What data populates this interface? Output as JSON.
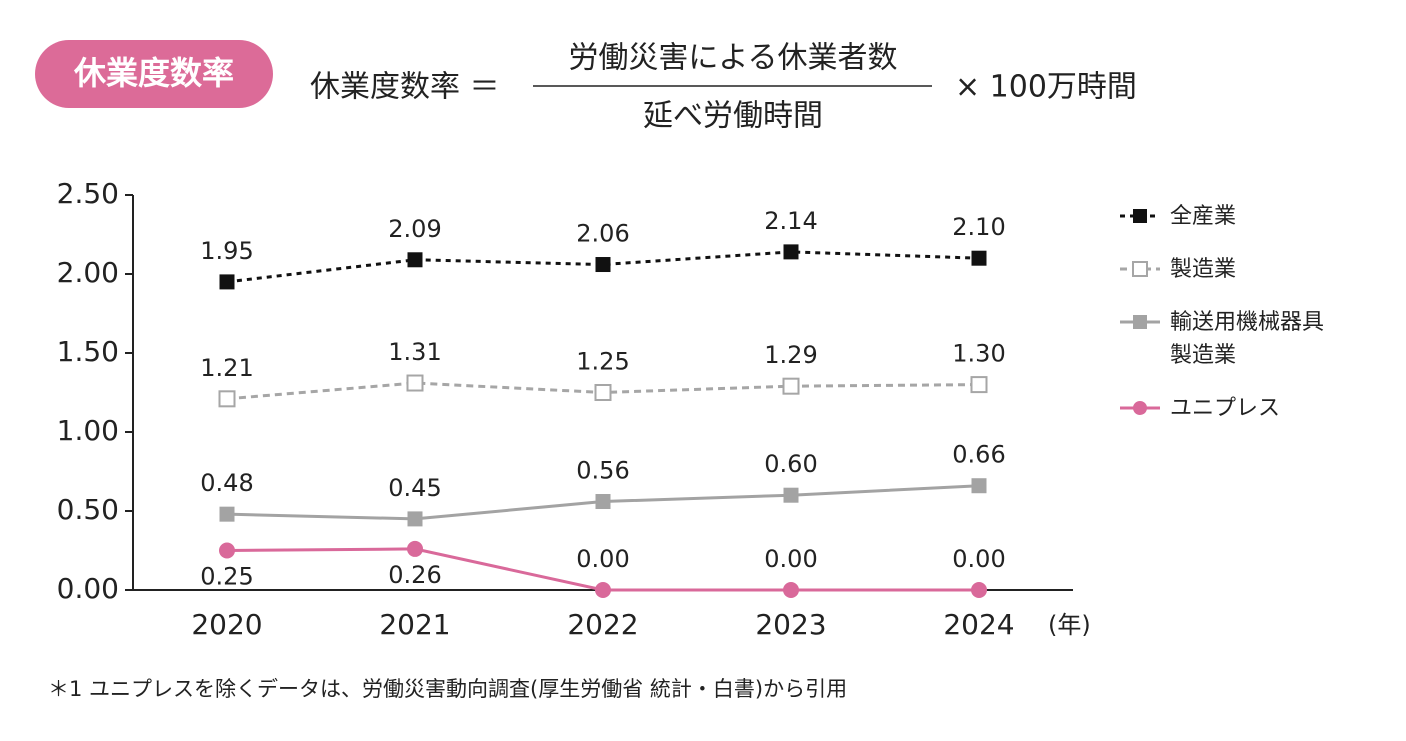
{
  "badge": "休業度数率",
  "formula": {
    "lhs": "休業度数率 ＝",
    "numerator": "労働災害による休業者数",
    "denominator": "延べ労働時間",
    "multiplier": "× 100万時間"
  },
  "chart_data": {
    "type": "line",
    "x_label": "(年)",
    "categories": [
      "2020",
      "2021",
      "2022",
      "2023",
      "2024"
    ],
    "ylim": [
      0,
      2.5
    ],
    "yticks": [
      {
        "value": 0,
        "label": "0.00"
      },
      {
        "value": 0.5,
        "label": "0.50"
      },
      {
        "value": 1,
        "label": "1.00"
      },
      {
        "value": 1.5,
        "label": "1.50"
      },
      {
        "value": 2,
        "label": "2.00"
      },
      {
        "value": 2.5,
        "label": "2.50"
      }
    ],
    "series": [
      {
        "name": "全産業",
        "color": "#111111",
        "line_style": "dotted",
        "marker": "square",
        "marker_filled": true,
        "values": [
          1.95,
          2.09,
          2.06,
          2.14,
          2.1
        ],
        "value_labels": [
          "1.95",
          "2.09",
          "2.06",
          "2.14",
          "2.10"
        ]
      },
      {
        "name": "製造業",
        "color": "#a6a6a6",
        "line_style": "dashed",
        "marker": "square",
        "marker_filled": false,
        "values": [
          1.21,
          1.31,
          1.25,
          1.29,
          1.3
        ],
        "value_labels": [
          "1.21",
          "1.31",
          "1.25",
          "1.29",
          "1.30"
        ]
      },
      {
        "name": "輸送用機械器具製造業",
        "color": "#a3a3a3",
        "line_style": "solid",
        "marker": "square",
        "marker_filled": true,
        "values": [
          0.48,
          0.45,
          0.56,
          0.6,
          0.66
        ],
        "value_labels": [
          "0.48",
          "0.45",
          "0.56",
          "0.60",
          "0.66"
        ]
      },
      {
        "name": "ユニプレス",
        "color": "#d9699a",
        "line_style": "solid",
        "marker": "circle",
        "marker_filled": true,
        "values": [
          0.25,
          0.26,
          0,
          0,
          0
        ],
        "value_labels": [
          "0.25",
          "0.26",
          "0.00",
          "0.00",
          "0.00"
        ]
      }
    ]
  },
  "footnote": "＊1 ユニプレスを除くデータは、労働災害動向調査(厚生労働省 統計・白書)から引用"
}
